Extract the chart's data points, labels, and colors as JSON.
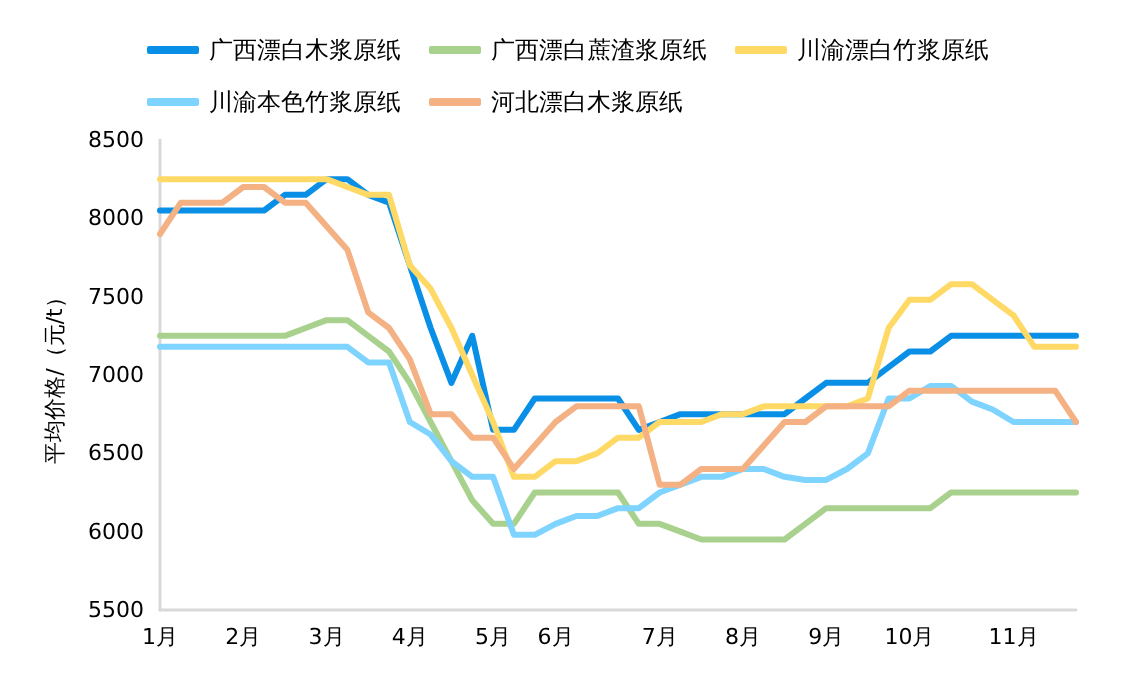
{
  "chart_data": {
    "type": "line",
    "ylabel": "平均价格/（元/t）",
    "categories": [
      "1月",
      null,
      null,
      null,
      "2月",
      null,
      null,
      null,
      "3月",
      null,
      null,
      null,
      "4月",
      null,
      null,
      null,
      "5月",
      null,
      null,
      "6月",
      null,
      null,
      null,
      null,
      "7月",
      null,
      null,
      null,
      "8月",
      null,
      null,
      null,
      "9月",
      null,
      null,
      null,
      "10月",
      null,
      null,
      null,
      null,
      "11月",
      null,
      null,
      null
    ],
    "ylim": [
      5500,
      8500
    ],
    "yticks": [
      5500,
      6000,
      6500,
      7000,
      7500,
      8000,
      8500
    ],
    "grid": false,
    "legend": "top",
    "marker": "none",
    "line_style": "solid",
    "series": [
      {
        "name": "广西漂白木浆原纸",
        "color": "#0a8fe6",
        "values": [
          8050,
          8050,
          8050,
          8050,
          8050,
          8050,
          8150,
          8150,
          8250,
          8250,
          8150,
          8100,
          7700,
          7300,
          6950,
          7250,
          6650,
          6650,
          6850,
          6850,
          6850,
          6850,
          6850,
          6650,
          6700,
          6750,
          6750,
          6750,
          6750,
          6750,
          6750,
          6850,
          6950,
          6950,
          6950,
          7050,
          7150,
          7150,
          7250,
          7250,
          7250,
          7250,
          7250,
          7250,
          7250
        ]
      },
      {
        "name": "广西漂白蔗渣浆原纸",
        "color": "#a9d18e",
        "values": [
          7250,
          7250,
          7250,
          7250,
          7250,
          7250,
          7250,
          7300,
          7350,
          7350,
          7250,
          7150,
          6950,
          6700,
          6450,
          6200,
          6050,
          6050,
          6250,
          6250,
          6250,
          6250,
          6250,
          6050,
          6050,
          6000,
          5950,
          5950,
          5950,
          5950,
          5950,
          6050,
          6150,
          6150,
          6150,
          6150,
          6150,
          6150,
          6250,
          6250,
          6250,
          6250,
          6250,
          6250,
          6250
        ]
      },
      {
        "name": "川渝漂白竹浆原纸",
        "color": "#ffd966",
        "values": [
          8250,
          8250,
          8250,
          8250,
          8250,
          8250,
          8250,
          8250,
          8250,
          8200,
          8150,
          8150,
          7700,
          7550,
          7300,
          7000,
          6700,
          6350,
          6350,
          6450,
          6450,
          6500,
          6600,
          6600,
          6700,
          6700,
          6700,
          6750,
          6750,
          6800,
          6800,
          6800,
          6800,
          6800,
          6850,
          7300,
          7480,
          7480,
          7580,
          7580,
          7480,
          7380,
          7180,
          7180,
          7180
        ]
      },
      {
        "name": "川渝本色竹浆原纸",
        "color": "#7fd3ff",
        "values": [
          7180,
          7180,
          7180,
          7180,
          7180,
          7180,
          7180,
          7180,
          7180,
          7180,
          7080,
          7080,
          6700,
          6620,
          6450,
          6350,
          6350,
          5980,
          5980,
          6050,
          6100,
          6100,
          6150,
          6150,
          6250,
          6300,
          6350,
          6350,
          6400,
          6400,
          6350,
          6330,
          6330,
          6400,
          6500,
          6850,
          6850,
          6930,
          6930,
          6830,
          6780,
          6700,
          6700,
          6700,
          6700
        ]
      },
      {
        "name": "河北漂白木浆原纸",
        "color": "#f4b183",
        "values": [
          7900,
          8100,
          8100,
          8100,
          8200,
          8200,
          8100,
          8100,
          7950,
          7800,
          7400,
          7300,
          7100,
          6750,
          6750,
          6600,
          6600,
          6400,
          6550,
          6700,
          6800,
          6800,
          6800,
          6800,
          6300,
          6300,
          6400,
          6400,
          6400,
          6550,
          6700,
          6700,
          6800,
          6800,
          6800,
          6800,
          6900,
          6900,
          6900,
          6900,
          6900,
          6900,
          6900,
          6900,
          6700
        ]
      }
    ]
  }
}
